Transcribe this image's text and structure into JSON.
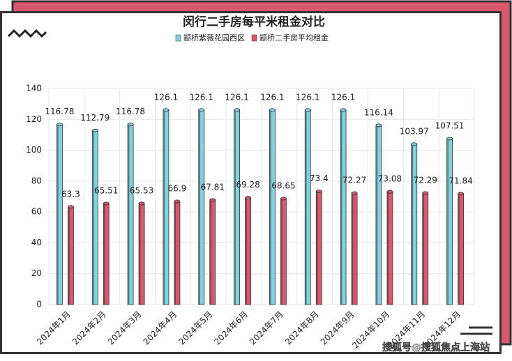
{
  "chart_data": {
    "type": "bar",
    "title": "闵行二手房每平米租金对比",
    "categories": [
      "2024年1月",
      "2024年2月",
      "2024年3月",
      "2024年4月",
      "2024年5月",
      "2024年6月",
      "2024年7月",
      "2024年8月",
      "2024年9月",
      "2024年10月",
      "2024年11月",
      "2024年12月"
    ],
    "series": [
      {
        "name": "颛桥紫薇花园西区",
        "color": "#7fd3e0",
        "values": [
          116.78,
          112.79,
          116.78,
          126.1,
          126.1,
          126.1,
          126.1,
          126.1,
          126.1,
          116.14,
          103.97,
          107.51
        ]
      },
      {
        "name": "颛桥二手房平均租金",
        "color": "#d9576f",
        "values": [
          63.3,
          65.51,
          65.53,
          66.9,
          67.81,
          69.28,
          68.65,
          73.4,
          72.27,
          73.08,
          72.29,
          71.84
        ]
      }
    ],
    "ylim": [
      0,
      140
    ],
    "yticks": [
      0,
      20,
      40,
      60,
      80,
      100,
      120,
      140
    ],
    "grid": true,
    "watermark": "搜狐号@搜狐焦点上海站"
  }
}
